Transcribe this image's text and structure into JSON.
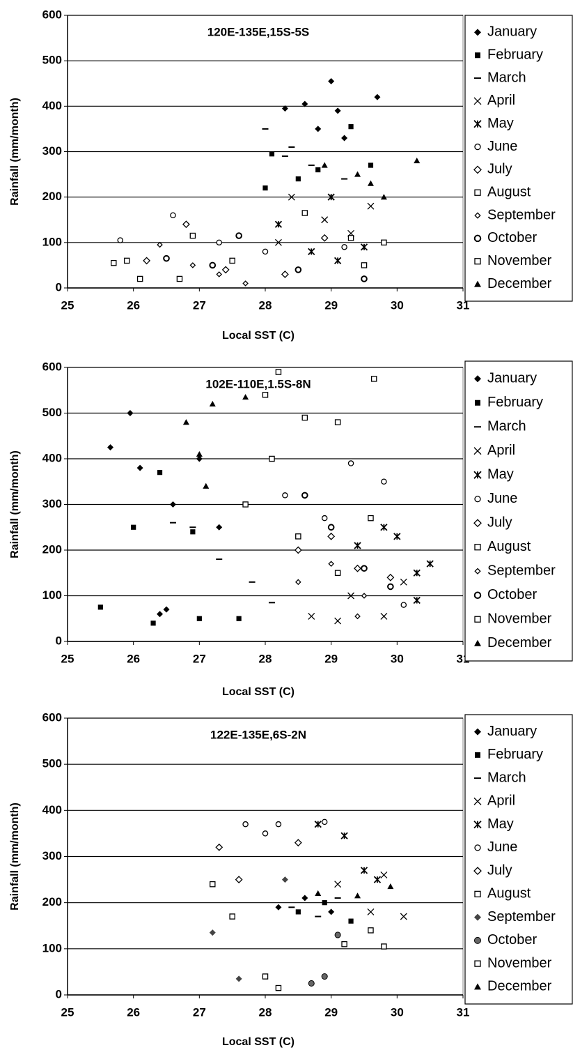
{
  "chart_data": [
    {
      "type": "scatter",
      "title": "120E-135E,15S-5S",
      "xlabel": "Local SST (C)",
      "ylabel": "Rainfall (mm/month)",
      "xlim": [
        25,
        31
      ],
      "ylim": [
        0,
        600
      ],
      "xticks": [
        25,
        26,
        27,
        28,
        29,
        30,
        31
      ],
      "yticks": [
        0,
        100,
        200,
        300,
        400,
        500,
        600
      ],
      "grid": true,
      "series": [
        {
          "name": "January",
          "color": "#000000",
          "marker": "diamond",
          "x": [
            28.3,
            28.6,
            29.0,
            29.1,
            29.7,
            28.8,
            29.2
          ],
          "y": [
            395,
            405,
            455,
            390,
            420,
            350,
            330
          ]
        },
        {
          "name": "February",
          "color": "#000000",
          "marker": "square",
          "x": [
            28.1,
            28.5,
            29.3,
            28.0,
            29.6,
            28.8
          ],
          "y": [
            295,
            240,
            355,
            220,
            270,
            260
          ]
        },
        {
          "name": "March",
          "color": "#000000",
          "marker": "dash",
          "x": [
            28.0,
            28.3,
            28.7,
            29.2,
            28.4
          ],
          "y": [
            350,
            290,
            270,
            240,
            310
          ]
        },
        {
          "name": "April",
          "color": "#000000",
          "marker": "x",
          "x": [
            28.4,
            28.9,
            29.3,
            29.6,
            28.2
          ],
          "y": [
            200,
            150,
            120,
            180,
            100
          ]
        },
        {
          "name": "May",
          "color": "#000000",
          "marker": "asterisk",
          "x": [
            28.2,
            28.7,
            29.1,
            29.5,
            29.0
          ],
          "y": [
            140,
            80,
            60,
            90,
            200
          ]
        },
        {
          "name": "June",
          "color": "#000000",
          "marker": "circle",
          "x": [
            25.8,
            26.6,
            27.3,
            28.0,
            29.2
          ],
          "y": [
            105,
            160,
            100,
            80,
            90
          ]
        },
        {
          "name": "July",
          "color": "#000000",
          "marker": "diamond-open",
          "x": [
            26.2,
            26.8,
            27.4,
            28.3,
            28.9
          ],
          "y": [
            60,
            140,
            40,
            30,
            110
          ]
        },
        {
          "name": "August",
          "color": "#000000",
          "marker": "square-open",
          "x": [
            25.7,
            26.1,
            26.9,
            27.5,
            29.5
          ],
          "y": [
            55,
            20,
            115,
            60,
            50
          ]
        },
        {
          "name": "September",
          "color": "#000000",
          "marker": "diamond-small",
          "x": [
            26.4,
            26.9,
            27.3,
            27.7
          ],
          "y": [
            95,
            50,
            30,
            10
          ]
        },
        {
          "name": "October",
          "color": "#000000",
          "marker": "circle-thick",
          "x": [
            26.5,
            27.2,
            27.6,
            28.5,
            29.5
          ],
          "y": [
            65,
            50,
            115,
            40,
            20
          ]
        },
        {
          "name": "November",
          "color": "#000000",
          "marker": "square-open",
          "x": [
            25.9,
            26.7,
            28.6,
            29.3,
            29.8
          ],
          "y": [
            60,
            20,
            165,
            110,
            100
          ]
        },
        {
          "name": "December",
          "color": "#000000",
          "marker": "triangle",
          "x": [
            28.9,
            29.4,
            29.8,
            30.3,
            29.6
          ],
          "y": [
            270,
            250,
            200,
            280,
            230
          ]
        }
      ]
    },
    {
      "type": "scatter",
      "title": "102E-110E,1.5S-8N",
      "xlabel": "Local SST (C)",
      "ylabel": "Rainfall (mm/month)",
      "xlim": [
        25,
        31
      ],
      "ylim": [
        0,
        600
      ],
      "xticks": [
        25,
        26,
        27,
        28,
        29,
        30,
        31
      ],
      "yticks": [
        0,
        100,
        200,
        300,
        400,
        500,
        600
      ],
      "grid": true,
      "series": [
        {
          "name": "January",
          "color": "#000000",
          "marker": "diamond",
          "x": [
            25.65,
            25.95,
            26.1,
            26.6,
            27.0,
            27.3,
            26.4,
            26.5
          ],
          "y": [
            425,
            500,
            380,
            300,
            400,
            250,
            60,
            70
          ]
        },
        {
          "name": "February",
          "color": "#000000",
          "marker": "square",
          "x": [
            25.5,
            26.0,
            26.4,
            27.0,
            27.6,
            26.9,
            26.3
          ],
          "y": [
            75,
            250,
            370,
            50,
            50,
            240,
            40
          ]
        },
        {
          "name": "March",
          "color": "#000000",
          "marker": "dash",
          "x": [
            26.6,
            27.3,
            27.8,
            28.1,
            26.9
          ],
          "y": [
            260,
            180,
            130,
            85,
            250
          ]
        },
        {
          "name": "April",
          "color": "#000000",
          "marker": "x",
          "x": [
            28.7,
            29.1,
            29.8,
            30.1,
            29.3
          ],
          "y": [
            55,
            45,
            55,
            130,
            100
          ]
        },
        {
          "name": "May",
          "color": "#000000",
          "marker": "asterisk",
          "x": [
            29.4,
            29.8,
            30.0,
            30.3,
            30.5,
            30.3
          ],
          "y": [
            210,
            250,
            230,
            90,
            170,
            150
          ]
        },
        {
          "name": "June",
          "color": "#000000",
          "marker": "circle",
          "x": [
            28.3,
            28.9,
            29.3,
            29.8,
            30.1
          ],
          "y": [
            320,
            270,
            390,
            350,
            80
          ]
        },
        {
          "name": "July",
          "color": "#000000",
          "marker": "diamond-open",
          "x": [
            28.5,
            29.0,
            29.4,
            29.9
          ],
          "y": [
            200,
            230,
            160,
            140
          ]
        },
        {
          "name": "August",
          "color": "#000000",
          "marker": "square-open",
          "x": [
            28.0,
            28.5,
            29.1,
            29.6
          ],
          "y": [
            540,
            230,
            150,
            270
          ]
        },
        {
          "name": "September",
          "color": "#000000",
          "marker": "diamond-small",
          "x": [
            28.5,
            29.0,
            29.4,
            29.5
          ],
          "y": [
            130,
            170,
            55,
            100
          ]
        },
        {
          "name": "October",
          "color": "#000000",
          "marker": "circle-thick",
          "x": [
            28.6,
            29.0,
            29.5,
            29.9
          ],
          "y": [
            320,
            250,
            160,
            120
          ]
        },
        {
          "name": "November",
          "color": "#000000",
          "marker": "square-open",
          "x": [
            27.7,
            28.1,
            28.6,
            29.1,
            29.65,
            28.2
          ],
          "y": [
            300,
            400,
            490,
            480,
            575,
            590
          ]
        },
        {
          "name": "December",
          "color": "#000000",
          "marker": "triangle",
          "x": [
            26.8,
            27.2,
            27.7,
            27.1,
            27.0
          ],
          "y": [
            480,
            520,
            535,
            340,
            410
          ]
        }
      ]
    },
    {
      "type": "scatter",
      "title": "122E-135E,6S-2N",
      "xlabel": "Local SST (C)",
      "ylabel": "Rainfall (mm/month)",
      "xlim": [
        25,
        31
      ],
      "ylim": [
        0,
        600
      ],
      "xticks": [
        25,
        26,
        27,
        28,
        29,
        30,
        31
      ],
      "yticks": [
        0,
        100,
        200,
        300,
        400,
        500,
        600
      ],
      "grid": true,
      "series": [
        {
          "name": "January",
          "color": "#000000",
          "marker": "diamond",
          "x": [
            28.2,
            28.6,
            29.0
          ],
          "y": [
            190,
            210,
            180
          ]
        },
        {
          "name": "February",
          "color": "#000000",
          "marker": "square",
          "x": [
            28.5,
            28.9,
            29.3
          ],
          "y": [
            180,
            200,
            160
          ]
        },
        {
          "name": "March",
          "color": "#000000",
          "marker": "dash",
          "x": [
            28.4,
            28.8,
            29.1
          ],
          "y": [
            190,
            170,
            210
          ]
        },
        {
          "name": "April",
          "color": "#000000",
          "marker": "x",
          "x": [
            29.1,
            29.6,
            29.8,
            30.1
          ],
          "y": [
            240,
            180,
            260,
            170
          ]
        },
        {
          "name": "May",
          "color": "#000000",
          "marker": "asterisk",
          "x": [
            28.8,
            29.2,
            29.5,
            29.7
          ],
          "y": [
            370,
            345,
            270,
            250
          ]
        },
        {
          "name": "June",
          "color": "#000000",
          "marker": "circle",
          "x": [
            27.7,
            28.0,
            28.2,
            28.9
          ],
          "y": [
            370,
            350,
            370,
            375
          ]
        },
        {
          "name": "July",
          "color": "#000000",
          "marker": "diamond-open",
          "x": [
            27.3,
            27.6,
            28.5
          ],
          "y": [
            320,
            250,
            330
          ]
        },
        {
          "name": "August",
          "color": "#000000",
          "marker": "square-open",
          "x": [
            27.2,
            27.5,
            28.0,
            28.2
          ],
          "y": [
            240,
            170,
            40,
            15
          ]
        },
        {
          "name": "September",
          "color": "#444444",
          "marker": "diamond",
          "x": [
            27.2,
            27.6,
            28.3
          ],
          "y": [
            135,
            35,
            250
          ]
        },
        {
          "name": "October",
          "color": "#666666",
          "marker": "circle-filled",
          "x": [
            28.7,
            28.9,
            29.1
          ],
          "y": [
            25,
            40,
            130
          ]
        },
        {
          "name": "November",
          "color": "#000000",
          "marker": "square-open",
          "x": [
            29.2,
            29.6,
            29.8
          ],
          "y": [
            110,
            140,
            105
          ]
        },
        {
          "name": "December",
          "color": "#000000",
          "marker": "triangle",
          "x": [
            29.4,
            29.9,
            28.8
          ],
          "y": [
            215,
            235,
            220
          ]
        }
      ]
    }
  ]
}
